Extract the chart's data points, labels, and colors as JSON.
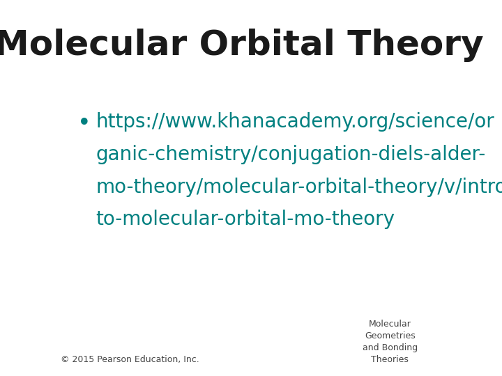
{
  "title": "Molecular Orbital Theory",
  "title_fontsize": 36,
  "title_color": "#1a1a1a",
  "title_fontweight": "bold",
  "bullet_char": "•",
  "link_lines": [
    "https://www.khanacademy.org/science/or",
    "ganic-chemistry/conjugation-diels-alder-",
    "mo-theory/molecular-orbital-theory/v/intro-",
    "to-molecular-orbital-mo-theory"
  ],
  "link_color": "#008080",
  "link_fontsize": 20,
  "footer_left": "© 2015 Pearson Education, Inc.",
  "footer_right": "Molecular\nGeometries\nand Bonding\nTheories",
  "footer_fontsize": 9,
  "footer_color": "#444444",
  "background_color": "#ffffff"
}
